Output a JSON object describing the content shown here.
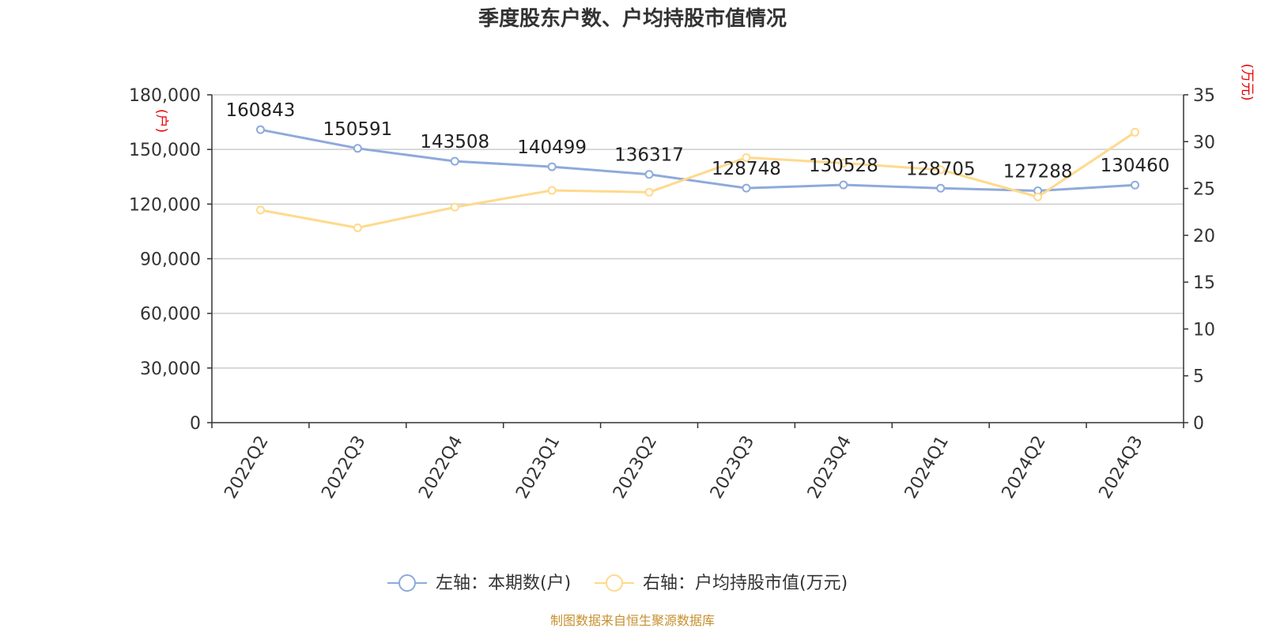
{
  "title": "季度股东户数、户均持股市值情况",
  "source": "制图数据来自恒生聚源数据库",
  "left_axis_unit": "(户)",
  "right_axis_unit": "(万元)",
  "colors": {
    "holders": "#8eaadb",
    "avg_value": "#ffd98c",
    "unit_text": "#e60000",
    "source_text": "#c7902f"
  },
  "chart_data": {
    "type": "line",
    "title": "季度股东户数、户均持股市值情况",
    "categories": [
      "2022Q2",
      "2022Q3",
      "2022Q4",
      "2023Q1",
      "2023Q2",
      "2023Q3",
      "2023Q4",
      "2024Q1",
      "2024Q2",
      "2024Q3"
    ],
    "left_axis": {
      "min": 0,
      "max": 180000,
      "ticks": [
        0,
        30000,
        60000,
        90000,
        120000,
        150000,
        180000
      ],
      "tick_labels": [
        "0",
        "30,000",
        "60,000",
        "90,000",
        "120,000",
        "150,000",
        "180,000"
      ],
      "unit": "(户)"
    },
    "right_axis": {
      "min": 0,
      "max": 35,
      "ticks": [
        0,
        5,
        10,
        15,
        20,
        25,
        30,
        35
      ],
      "tick_labels": [
        "0",
        "5",
        "10",
        "15",
        "20",
        "25",
        "30",
        "35"
      ],
      "unit": "(万元)"
    },
    "series": [
      {
        "name": "左轴：本期数(户)",
        "axis": "left",
        "color": "#8eaadb",
        "values": [
          160843,
          150591,
          143508,
          140499,
          136317,
          128748,
          130528,
          128705,
          127288,
          130460
        ],
        "labels": [
          "160843",
          "150591",
          "143508",
          "140499",
          "136317",
          "128748",
          "130528",
          "128705",
          "127288",
          "130460"
        ]
      },
      {
        "name": "右轴：户均持股市值(万元)",
        "axis": "right",
        "color": "#ffd98c",
        "values": [
          22.7,
          20.8,
          23.0,
          24.8,
          24.6,
          28.3,
          27.7,
          27.0,
          24.1,
          31.0
        ]
      }
    ],
    "grid": true,
    "legend": "bottom-center"
  }
}
